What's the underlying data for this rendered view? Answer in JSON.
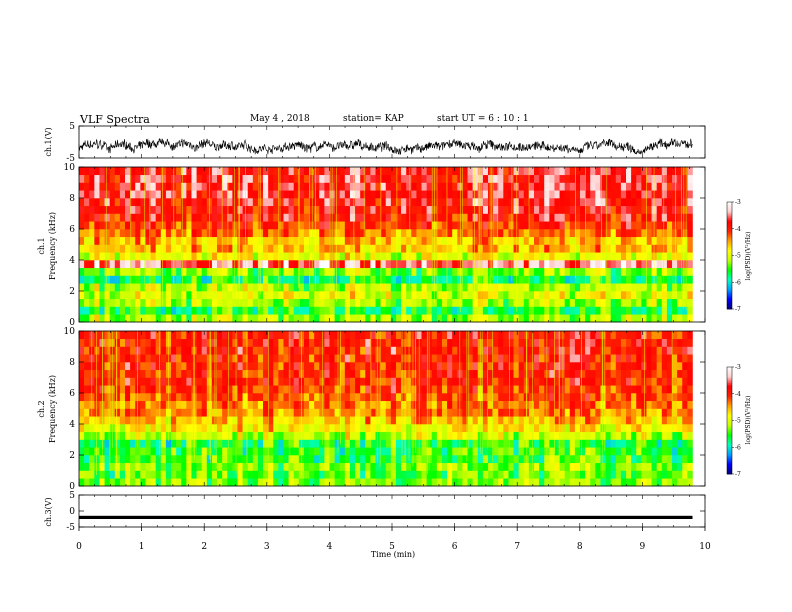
{
  "header": {
    "title": "VLF Spectra",
    "date": "May 4 , 2018",
    "station": "station= KAP",
    "start": "start  UT =  6 : 10 : 1"
  },
  "axes": {
    "ch1_ylabel": "ch.1(V)",
    "ch1_spec_ylabel_line1": "ch.1",
    "ch1_spec_ylabel_line2": "Frequency (kHz)",
    "ch2_spec_ylabel_line1": "ch.2",
    "ch2_spec_ylabel_line2": "Frequency (kHz)",
    "ch3_ylabel": "ch.3(V)",
    "xlabel": "Time (min)",
    "colorbar_label": "log(PSD)(V²/Hz)"
  },
  "colors": {
    "colormap": [
      "#000080",
      "#0000ff",
      "#00a0ff",
      "#00ffc0",
      "#00ff00",
      "#c8ff00",
      "#ffff00",
      "#ffa000",
      "#ff2000",
      "#ff0000",
      "#ffd0d0",
      "#ffffff"
    ]
  },
  "chart_data": [
    {
      "type": "line",
      "name": "ch1-waveform",
      "ylabel": "ch.1(V)",
      "xlim": [
        0,
        10
      ],
      "ylim": [
        -5,
        5
      ],
      "yticks": [
        "5",
        "-5"
      ],
      "x_end": 9.8,
      "approx_values": {
        "mean": -1.5,
        "range": [
          -3.8,
          1.0
        ]
      }
    },
    {
      "type": "heatmap",
      "name": "ch1-spectrogram",
      "ylabel": "ch.1 Frequency (kHz)",
      "xlim": [
        0,
        10
      ],
      "ylim": [
        0,
        10
      ],
      "yticks": [
        "0",
        "2",
        "4",
        "6",
        "8",
        "10"
      ],
      "colorbar": {
        "range": [
          -7,
          -3
        ],
        "ticks": [
          "-3",
          "-4",
          "-5",
          "-6",
          "-7"
        ],
        "label": "log(PSD)(V²/Hz)"
      },
      "frequency_profile": [
        {
          "f": 0.25,
          "level": -5.2
        },
        {
          "f": 0.75,
          "level": -5.6
        },
        {
          "f": 1.25,
          "level": -5.2
        },
        {
          "f": 1.75,
          "level": -5.0
        },
        {
          "f": 2.25,
          "level": -5.2
        },
        {
          "f": 2.75,
          "level": -5.7
        },
        {
          "f": 3.25,
          "level": -5.3
        },
        {
          "f": 3.75,
          "level": -3.5
        },
        {
          "f": 4.25,
          "level": -4.9
        },
        {
          "f": 4.75,
          "level": -4.6
        },
        {
          "f": 5.25,
          "level": -4.6
        },
        {
          "f": 5.75,
          "level": -4.3
        },
        {
          "f": 6.25,
          "level": -4.1
        },
        {
          "f": 6.75,
          "level": -3.9
        },
        {
          "f": 7.25,
          "level": -3.8
        },
        {
          "f": 7.75,
          "level": -3.75
        },
        {
          "f": 8.25,
          "level": -3.7
        },
        {
          "f": 8.75,
          "level": -3.7
        },
        {
          "f": 9.25,
          "level": -3.7
        },
        {
          "f": 9.75,
          "level": -3.75
        }
      ]
    },
    {
      "type": "heatmap",
      "name": "ch2-spectrogram",
      "ylabel": "ch.2 Frequency (kHz)",
      "xlim": [
        0,
        10
      ],
      "ylim": [
        0,
        10
      ],
      "yticks": [
        "0",
        "2",
        "4",
        "6",
        "8",
        "10"
      ],
      "colorbar": {
        "range": [
          -7,
          -3
        ],
        "ticks": [
          "-3",
          "-4",
          "-5",
          "-6",
          "-7"
        ],
        "label": "log(PSD)(V²/Hz)"
      },
      "frequency_profile": [
        {
          "f": 0.25,
          "level": -5.3
        },
        {
          "f": 0.75,
          "level": -5.4
        },
        {
          "f": 1.25,
          "level": -5.3
        },
        {
          "f": 1.75,
          "level": -5.5
        },
        {
          "f": 2.25,
          "level": -5.5
        },
        {
          "f": 2.75,
          "level": -5.6
        },
        {
          "f": 3.25,
          "level": -5.1
        },
        {
          "f": 3.75,
          "level": -4.8
        },
        {
          "f": 4.25,
          "level": -4.6
        },
        {
          "f": 4.75,
          "level": -4.4
        },
        {
          "f": 5.25,
          "level": -4.3
        },
        {
          "f": 5.75,
          "level": -4.2
        },
        {
          "f": 6.25,
          "level": -4.1
        },
        {
          "f": 6.75,
          "level": -4.0
        },
        {
          "f": 7.25,
          "level": -4.0
        },
        {
          "f": 7.75,
          "level": -4.0
        },
        {
          "f": 8.25,
          "level": -4.0
        },
        {
          "f": 8.75,
          "level": -3.95
        },
        {
          "f": 9.25,
          "level": -3.95
        },
        {
          "f": 9.75,
          "level": -3.95
        }
      ]
    },
    {
      "type": "line",
      "name": "ch3-waveform",
      "ylabel": "ch.3(V)",
      "xlim": [
        0,
        10
      ],
      "ylim": [
        -5,
        5
      ],
      "yticks": [
        "5",
        "0",
        "-5"
      ],
      "x_end": 9.8,
      "approx_values": {
        "mean": -2.0,
        "range": [
          -2.5,
          -1.5
        ]
      }
    }
  ],
  "time_axis": {
    "xlim": [
      0,
      10
    ],
    "ticks": [
      "0",
      "1",
      "2",
      "3",
      "4",
      "5",
      "6",
      "7",
      "8",
      "9",
      "10"
    ]
  }
}
